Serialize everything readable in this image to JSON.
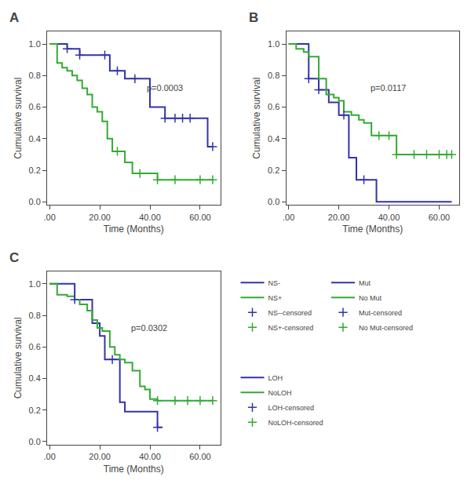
{
  "chart_data": [
    {
      "type": "line",
      "title": "A",
      "xlabel": "Time (Months)",
      "ylabel": "Cumulative survival",
      "xlim": [
        -1,
        68
      ],
      "ylim": [
        -0.02,
        1.08
      ],
      "xticks": [
        {
          "value": 0,
          "label": ".00"
        },
        {
          "value": 20,
          "label": "20.00"
        },
        {
          "value": 40,
          "label": "40.00"
        },
        {
          "value": 60,
          "label": "60.00"
        }
      ],
      "yticks": [
        {
          "value": 0,
          "label": "0.0"
        },
        0.2,
        0.4,
        0.6,
        0.8,
        {
          "value": 1,
          "label": "1.0"
        }
      ],
      "grid": false,
      "legend": "outside",
      "annotations": [
        {
          "text": "p=0.0003",
          "x": 38,
          "y": 0.72
        }
      ],
      "series": [
        {
          "name": "NS-",
          "type": "step",
          "color": "#3333AA",
          "x": [
            0,
            5,
            7,
            10,
            12,
            18,
            22,
            24,
            27,
            30,
            34,
            38,
            40,
            43,
            46,
            50,
            53,
            56,
            60,
            63,
            65
          ],
          "values": [
            1.0,
            1.0,
            0.97,
            0.97,
            0.93,
            0.93,
            0.93,
            0.83,
            0.83,
            0.78,
            0.78,
            0.78,
            0.6,
            0.6,
            0.53,
            0.53,
            0.53,
            0.53,
            0.53,
            0.35,
            0.35
          ]
        },
        {
          "name": "NS+",
          "type": "step",
          "color": "#33AA33",
          "x": [
            0,
            3,
            5,
            7,
            9,
            11,
            13,
            15,
            17,
            19,
            21,
            23,
            25,
            27,
            30,
            33,
            36,
            40,
            43,
            50,
            60,
            65
          ],
          "values": [
            1.0,
            0.88,
            0.85,
            0.83,
            0.8,
            0.77,
            0.72,
            0.68,
            0.6,
            0.57,
            0.51,
            0.4,
            0.32,
            0.32,
            0.25,
            0.18,
            0.18,
            0.18,
            0.14,
            0.14,
            0.14,
            0.14
          ]
        },
        {
          "name": "NS--censored",
          "type": "scatter",
          "marker": "plus",
          "color": "#3333AA",
          "x": [
            7,
            12,
            22,
            27,
            34,
            46,
            50,
            53,
            56,
            65
          ],
          "values": [
            0.97,
            0.93,
            0.93,
            0.83,
            0.78,
            0.53,
            0.53,
            0.53,
            0.53,
            0.35
          ]
        },
        {
          "name": "NS+-censored",
          "type": "scatter",
          "marker": "plus",
          "color": "#33AA33",
          "x": [
            27,
            36,
            43,
            50,
            60,
            65
          ],
          "values": [
            0.32,
            0.18,
            0.14,
            0.14,
            0.14,
            0.14
          ]
        }
      ]
    },
    {
      "type": "line",
      "title": "B",
      "xlabel": "Time (Months)",
      "ylabel": "Cumulative survival",
      "xlim": [
        -1,
        68
      ],
      "ylim": [
        -0.02,
        1.08
      ],
      "xticks": [
        {
          "value": 0,
          "label": ".00"
        },
        {
          "value": 20,
          "label": "20.00"
        },
        {
          "value": 40,
          "label": "40.00"
        },
        {
          "value": 60,
          "label": "60.00"
        }
      ],
      "yticks": [
        {
          "value": 0,
          "label": "0.0"
        },
        0.2,
        0.4,
        0.6,
        0.8,
        {
          "value": 1,
          "label": "1.0"
        }
      ],
      "grid": false,
      "legend": "outside",
      "annotations": [
        {
          "text": "p=0.0117",
          "x": 32,
          "y": 0.72
        }
      ],
      "series": [
        {
          "name": "Mut",
          "type": "step",
          "color": "#3333AA",
          "x": [
            0,
            5,
            8,
            12,
            16,
            20,
            22,
            24,
            27,
            30,
            35,
            65
          ],
          "values": [
            1.0,
            1.0,
            0.78,
            0.71,
            0.63,
            0.55,
            0.55,
            0.28,
            0.14,
            0.14,
            0.0,
            0.0
          ]
        },
        {
          "name": "No Mut",
          "type": "step",
          "color": "#33AA33",
          "x": [
            0,
            3,
            6,
            8,
            12,
            15,
            18,
            20,
            22,
            25,
            28,
            30,
            33,
            36,
            40,
            43,
            50,
            55,
            60,
            63,
            65
          ],
          "values": [
            1.0,
            0.97,
            0.95,
            0.92,
            0.78,
            0.68,
            0.66,
            0.64,
            0.57,
            0.55,
            0.52,
            0.5,
            0.42,
            0.42,
            0.42,
            0.3,
            0.3,
            0.3,
            0.3,
            0.3,
            0.3
          ]
        },
        {
          "name": "Mut-censored",
          "type": "scatter",
          "marker": "plus",
          "color": "#3333AA",
          "x": [
            8,
            12,
            22,
            30
          ],
          "values": [
            0.78,
            0.71,
            0.55,
            0.14
          ]
        },
        {
          "name": "No Mut-censored",
          "type": "scatter",
          "marker": "plus",
          "color": "#33AA33",
          "x": [
            36,
            40,
            43,
            50,
            55,
            60,
            63,
            65
          ],
          "values": [
            0.42,
            0.42,
            0.3,
            0.3,
            0.3,
            0.3,
            0.3,
            0.3
          ]
        }
      ]
    },
    {
      "type": "line",
      "title": "C",
      "xlabel": "Time (Months)",
      "ylabel": "Cumulative survival",
      "xlim": [
        -1,
        68
      ],
      "ylim": [
        -0.02,
        1.08
      ],
      "xticks": [
        {
          "value": 0,
          "label": ".00"
        },
        {
          "value": 20,
          "label": "20.00"
        },
        {
          "value": 40,
          "label": "40.00"
        },
        {
          "value": 60,
          "label": "60.00"
        }
      ],
      "yticks": [
        {
          "value": 0,
          "label": "0.0"
        },
        0.2,
        0.4,
        0.6,
        0.8,
        {
          "value": 1,
          "label": "1.0"
        }
      ],
      "grid": false,
      "legend": "outside",
      "annotations": [
        {
          "text": "p=0.0302",
          "x": 32,
          "y": 0.72
        }
      ],
      "series": [
        {
          "name": "LOH",
          "type": "step",
          "color": "#3333AA",
          "x": [
            0,
            5,
            8,
            10,
            14,
            17,
            20,
            22,
            25,
            28,
            30,
            35,
            40,
            43,
            45
          ],
          "values": [
            1.0,
            1.0,
            1.0,
            0.9,
            0.9,
            0.75,
            0.67,
            0.52,
            0.52,
            0.25,
            0.19,
            0.19,
            0.19,
            0.09,
            0.09
          ]
        },
        {
          "name": "NoLOH",
          "type": "step",
          "color": "#33AA33",
          "x": [
            0,
            3,
            7,
            10,
            12,
            15,
            17,
            19,
            21,
            24,
            26,
            28,
            30,
            33,
            36,
            38,
            40,
            43,
            50,
            55,
            60,
            65
          ],
          "values": [
            1.0,
            0.93,
            0.92,
            0.9,
            0.87,
            0.83,
            0.77,
            0.72,
            0.7,
            0.6,
            0.55,
            0.52,
            0.5,
            0.45,
            0.35,
            0.33,
            0.27,
            0.26,
            0.26,
            0.26,
            0.26,
            0.26
          ]
        },
        {
          "name": "LOH-censored",
          "type": "scatter",
          "marker": "plus",
          "color": "#3333AA",
          "x": [
            10,
            25,
            43
          ],
          "values": [
            0.9,
            0.52,
            0.09
          ]
        },
        {
          "name": "NoLOH-censored",
          "type": "scatter",
          "marker": "plus",
          "color": "#33AA33",
          "x": [
            43,
            50,
            55,
            60,
            65
          ],
          "values": [
            0.26,
            0.26,
            0.26,
            0.26,
            0.26
          ]
        }
      ]
    }
  ]
}
